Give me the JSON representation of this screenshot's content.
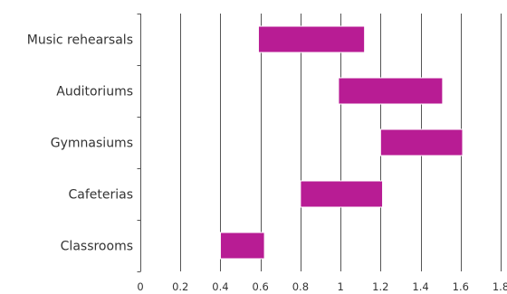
{
  "chart_data": {
    "type": "bar",
    "orientation": "horizontal-floating",
    "categories": [
      "Music rehearsals",
      "Auditoriums",
      "Gymnasiums",
      "Cafeterias",
      "Classrooms"
    ],
    "series": [
      {
        "ranges": [
          [
            0.59,
            1.12
          ],
          [
            0.99,
            1.51
          ],
          [
            1.2,
            1.61
          ],
          [
            0.8,
            1.21
          ],
          [
            0.4,
            0.62
          ]
        ]
      }
    ],
    "title": "",
    "xlabel": "",
    "ylabel": "",
    "xlim": [
      0,
      1.8
    ],
    "xticks": [
      0,
      0.2,
      0.4,
      0.6,
      0.8,
      1,
      1.2,
      1.4,
      1.6,
      1.8
    ],
    "xtick_labels": [
      "0",
      "0.2",
      "0.4",
      "0.6",
      "0.8",
      "1",
      "1.2",
      "1.4",
      "1.6",
      "1.8"
    ],
    "grid": "vertical",
    "legend": "none",
    "colors": {
      "bar": "#b81c94",
      "grid": "#555555",
      "text": "#333333"
    }
  }
}
